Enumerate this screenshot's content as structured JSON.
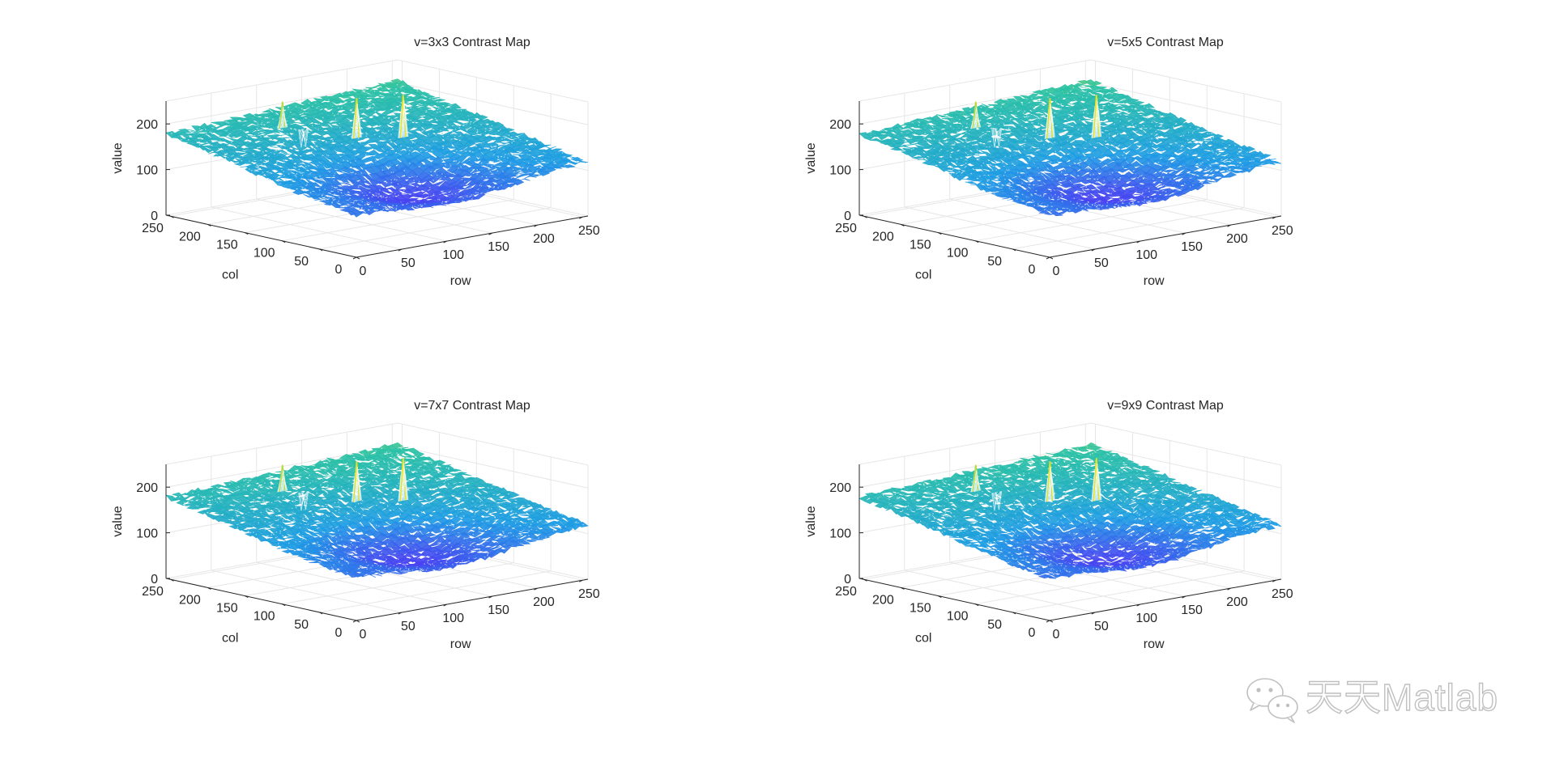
{
  "colors": {
    "surface_low": "#4a3ff2",
    "surface_mid": "#1e9ce4",
    "surface_high": "#2bc2a4",
    "peak": "#e6e31e",
    "axis": "#262626",
    "grid": "#e6e6e6"
  },
  "watermark": {
    "icon": "wechat-icon",
    "text": "天天Matlab"
  },
  "chart_data": [
    {
      "type": "surface",
      "title": "v=3x3 Contrast Map",
      "xlabel": "row",
      "ylabel": "col",
      "zlabel": "value",
      "xlim": [
        0,
        256
      ],
      "ylim": [
        0,
        256
      ],
      "zlim": [
        0,
        250
      ],
      "xticks": [
        0,
        50,
        100,
        150,
        200,
        250
      ],
      "yticks": [
        0,
        50,
        100,
        150,
        200,
        250
      ],
      "zticks": [
        0,
        100,
        200
      ],
      "corner_values": {
        "row0_col0": 95,
        "row256_col0": 120,
        "row0_col256": 178,
        "row256_col256": 205
      },
      "center_value": 75,
      "peaks": [
        {
          "row": 140,
          "col": 170,
          "value": 238
        },
        {
          "row": 175,
          "col": 150,
          "value": 240
        },
        {
          "row": 95,
          "col": 215,
          "value": 230
        },
        {
          "row": 110,
          "col": 205,
          "value": 165
        }
      ]
    },
    {
      "type": "surface",
      "title": "v=5x5 Contrast Map",
      "xlabel": "row",
      "ylabel": "col",
      "zlabel": "value",
      "xlim": [
        0,
        256
      ],
      "ylim": [
        0,
        256
      ],
      "zlim": [
        0,
        250
      ],
      "xticks": [
        0,
        50,
        100,
        150,
        200,
        250
      ],
      "yticks": [
        0,
        50,
        100,
        150,
        200,
        250
      ],
      "zticks": [
        0,
        100,
        200
      ],
      "corner_values": {
        "row0_col0": 95,
        "row256_col0": 120,
        "row0_col256": 178,
        "row256_col256": 205
      },
      "center_value": 75,
      "peaks": [
        {
          "row": 140,
          "col": 170,
          "value": 238
        },
        {
          "row": 175,
          "col": 150,
          "value": 240
        },
        {
          "row": 95,
          "col": 215,
          "value": 230
        },
        {
          "row": 110,
          "col": 205,
          "value": 165
        }
      ]
    },
    {
      "type": "surface",
      "title": "v=7x7 Contrast Map",
      "xlabel": "row",
      "ylabel": "col",
      "zlabel": "value",
      "xlim": [
        0,
        256
      ],
      "ylim": [
        0,
        256
      ],
      "zlim": [
        0,
        250
      ],
      "xticks": [
        0,
        50,
        100,
        150,
        200,
        250
      ],
      "yticks": [
        0,
        50,
        100,
        150,
        200,
        250
      ],
      "zticks": [
        0,
        100,
        200
      ],
      "corner_values": {
        "row0_col0": 95,
        "row256_col0": 120,
        "row0_col256": 178,
        "row256_col256": 205
      },
      "center_value": 75,
      "peaks": [
        {
          "row": 140,
          "col": 170,
          "value": 238
        },
        {
          "row": 175,
          "col": 150,
          "value": 240
        },
        {
          "row": 95,
          "col": 215,
          "value": 230
        },
        {
          "row": 110,
          "col": 205,
          "value": 165
        }
      ]
    },
    {
      "type": "surface",
      "title": "v=9x9 Contrast Map",
      "xlabel": "row",
      "ylabel": "col",
      "zlabel": "value",
      "xlim": [
        0,
        256
      ],
      "ylim": [
        0,
        256
      ],
      "zlim": [
        0,
        250
      ],
      "xticks": [
        0,
        50,
        100,
        150,
        200,
        250
      ],
      "yticks": [
        0,
        50,
        100,
        150,
        200,
        250
      ],
      "zticks": [
        0,
        100,
        200
      ],
      "corner_values": {
        "row0_col0": 95,
        "row256_col0": 120,
        "row0_col256": 178,
        "row256_col256": 205
      },
      "center_value": 75,
      "peaks": [
        {
          "row": 140,
          "col": 170,
          "value": 238
        },
        {
          "row": 175,
          "col": 150,
          "value": 240
        },
        {
          "row": 95,
          "col": 215,
          "value": 230
        },
        {
          "row": 110,
          "col": 205,
          "value": 165
        }
      ]
    }
  ]
}
